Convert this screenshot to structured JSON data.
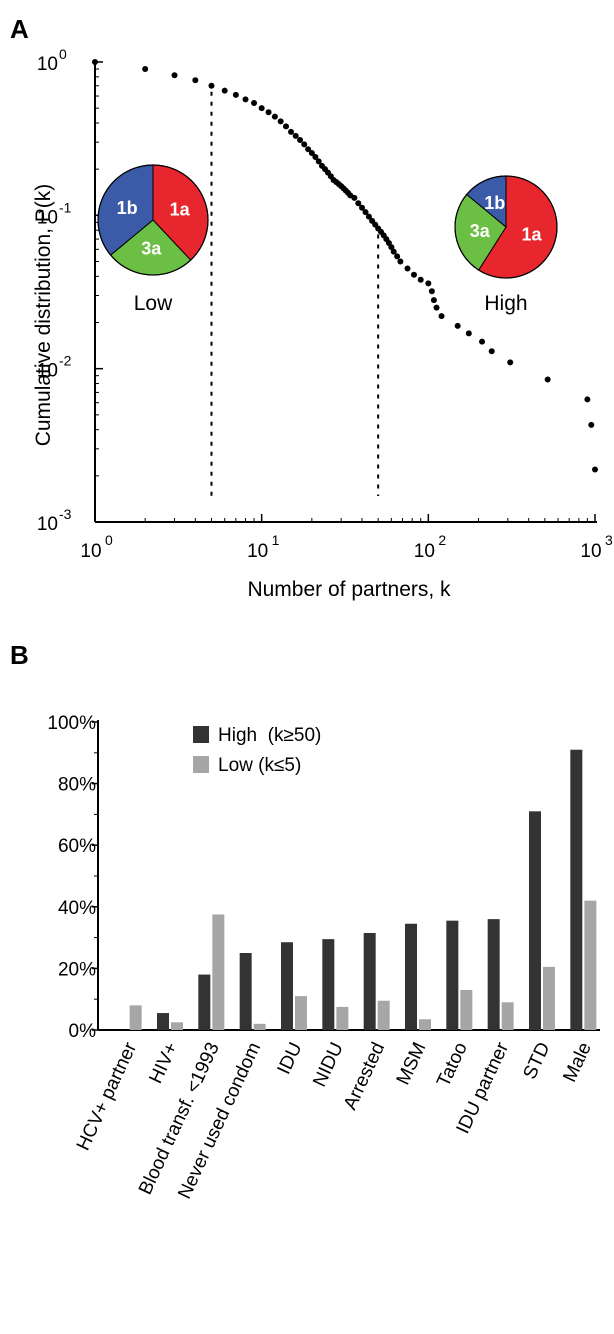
{
  "chart_data": [
    {
      "panel": "A",
      "type": "scatter",
      "xlabel": "Number of partners, k",
      "ylabel": "Cumulative distribution, P(k)",
      "xscale": "log",
      "yscale": "log",
      "xlim": [
        1,
        1000
      ],
      "ylim": [
        0.001,
        1
      ],
      "xticks": [
        {
          "base": "10",
          "exp": "0"
        },
        {
          "base": "10",
          "exp": "1"
        },
        {
          "base": "10",
          "exp": "2"
        },
        {
          "base": "10",
          "exp": "3"
        }
      ],
      "yticks": [
        {
          "base": "10",
          "exp": "0"
        },
        {
          "base": "10",
          "exp": "-1"
        },
        {
          "base": "10",
          "exp": "-2"
        },
        {
          "base": "10",
          "exp": "-3"
        }
      ],
      "cutoffs": [
        5,
        50
      ],
      "points": [
        [
          1,
          1.0
        ],
        [
          2,
          0.9
        ],
        [
          3,
          0.82
        ],
        [
          4,
          0.76
        ],
        [
          5,
          0.7
        ],
        [
          6,
          0.65
        ],
        [
          7,
          0.61
        ],
        [
          8,
          0.57
        ],
        [
          9,
          0.54
        ],
        [
          10,
          0.5
        ],
        [
          11,
          0.47
        ],
        [
          12,
          0.44
        ],
        [
          13,
          0.41
        ],
        [
          14,
          0.38
        ],
        [
          15,
          0.35
        ],
        [
          16,
          0.33
        ],
        [
          17,
          0.31
        ],
        [
          18,
          0.29
        ],
        [
          19,
          0.27
        ],
        [
          20,
          0.255
        ],
        [
          21,
          0.24
        ],
        [
          22,
          0.225
        ],
        [
          23,
          0.21
        ],
        [
          24,
          0.2
        ],
        [
          25,
          0.19
        ],
        [
          26,
          0.18
        ],
        [
          27,
          0.17
        ],
        [
          28,
          0.165
        ],
        [
          29,
          0.16
        ],
        [
          30,
          0.155
        ],
        [
          31,
          0.15
        ],
        [
          32,
          0.145
        ],
        [
          33,
          0.14
        ],
        [
          34,
          0.135
        ],
        [
          36,
          0.13
        ],
        [
          38,
          0.12
        ],
        [
          40,
          0.112
        ],
        [
          42,
          0.105
        ],
        [
          44,
          0.098
        ],
        [
          46,
          0.092
        ],
        [
          48,
          0.087
        ],
        [
          50,
          0.082
        ],
        [
          52,
          0.078
        ],
        [
          54,
          0.074
        ],
        [
          56,
          0.07
        ],
        [
          58,
          0.066
        ],
        [
          60,
          0.062
        ],
        [
          62,
          0.058
        ],
        [
          65,
          0.054
        ],
        [
          68,
          0.05
        ],
        [
          75,
          0.045
        ],
        [
          82,
          0.041
        ],
        [
          90,
          0.038
        ],
        [
          100,
          0.036
        ],
        [
          105,
          0.032
        ],
        [
          108,
          0.028
        ],
        [
          112,
          0.025
        ],
        [
          120,
          0.022
        ],
        [
          150,
          0.019
        ],
        [
          175,
          0.017
        ],
        [
          210,
          0.015
        ],
        [
          240,
          0.013
        ],
        [
          310,
          0.011
        ],
        [
          520,
          0.0085
        ],
        [
          900,
          0.0063
        ],
        [
          950,
          0.0043
        ],
        [
          1000,
          0.0022
        ]
      ],
      "pies": [
        {
          "caption": "Low",
          "slices": [
            {
              "label": "1a",
              "value": 38,
              "color": "#e8262d"
            },
            {
              "label": "3a",
              "value": 26,
              "color": "#6cbf45"
            },
            {
              "label": "1b",
              "value": 36,
              "color": "#3b5ba8"
            }
          ]
        },
        {
          "caption": "High",
          "slices": [
            {
              "label": "1a",
              "value": 59,
              "color": "#e8262d"
            },
            {
              "label": "3a",
              "value": 27,
              "color": "#6cbf45"
            },
            {
              "label": "1b",
              "value": 14,
              "color": "#3b5ba8"
            }
          ]
        }
      ]
    },
    {
      "panel": "B",
      "type": "bar",
      "ylim": [
        0,
        100
      ],
      "yticks": [
        "0%",
        "20%",
        "40%",
        "60%",
        "80%",
        "100%"
      ],
      "categories": [
        "HCV+ partner",
        "HIV+",
        "Blood transf. <1993",
        "Never used condom",
        "IDU",
        "NIDU",
        "Arrested",
        "MSM",
        "Tatoo",
        "IDU partner",
        "STD",
        "Male"
      ],
      "series": [
        {
          "name": "High  (k≥50)",
          "color": "#333333",
          "values": [
            0,
            5.5,
            18,
            25,
            28.5,
            29.5,
            31.5,
            34.5,
            35.5,
            36,
            71,
            91
          ]
        },
        {
          "name": "Low (k≤5)",
          "color": "#a6a6a6",
          "values": [
            8,
            2.5,
            37.5,
            2,
            11,
            7.5,
            9.5,
            3.5,
            13,
            9,
            20.5,
            42
          ]
        }
      ],
      "legend": "top-left"
    }
  ]
}
